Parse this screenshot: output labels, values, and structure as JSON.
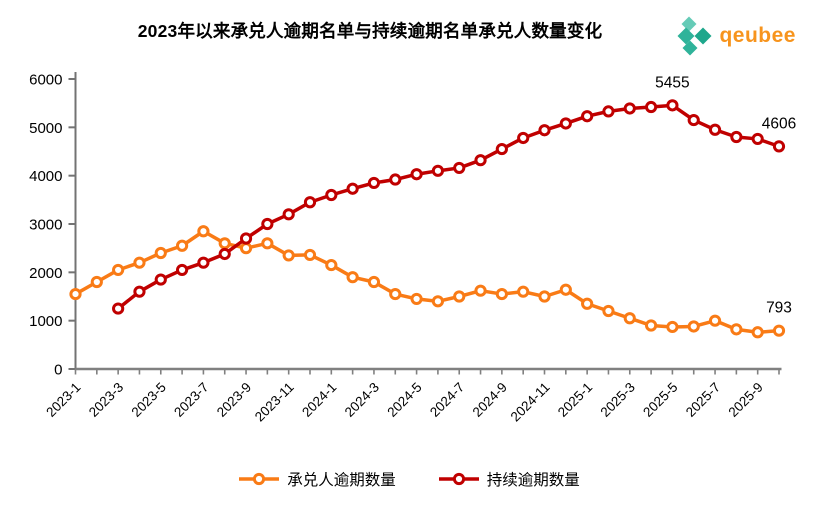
{
  "title": "2023年以来承兑人逾期名单与持续逾期名单承兑人数量变化",
  "logo": {
    "text": "qeubee",
    "colors": {
      "teal_dark": "#1EA78C",
      "teal": "#2FB39A",
      "teal_light": "#65CBB7",
      "orange": "#F7941D"
    }
  },
  "chart_data": {
    "type": "line",
    "title": "2023年以来承兑人逾期名单与持续逾期名单承兑人数量变化",
    "x": [
      "2023-1",
      "2023-2",
      "2023-3",
      "2023-4",
      "2023-5",
      "2023-6",
      "2023-7",
      "2023-8",
      "2023-9",
      "2023-10",
      "2023-11",
      "2023-12",
      "2024-1",
      "2024-2",
      "2024-3",
      "2024-4",
      "2024-5",
      "2024-6",
      "2024-7",
      "2024-8",
      "2024-9",
      "2024-10",
      "2024-11",
      "2024-12",
      "2025-1",
      "2025-2",
      "2025-3",
      "2025-4",
      "2025-5",
      "2025-6",
      "2025-7",
      "2025-8",
      "2025-9",
      "2025-10"
    ],
    "x_label_step": 2,
    "ylim": [
      0,
      6000
    ],
    "y_ticks": [
      0,
      1000,
      2000,
      3000,
      4000,
      5000,
      6000
    ],
    "grid": false,
    "legend_position": "bottom",
    "series": [
      {
        "name": "承兑人逾期数量",
        "color": "#F97B16",
        "values": [
          1550,
          1800,
          2050,
          2200,
          2400,
          2550,
          2850,
          2600,
          2500,
          2600,
          2350,
          2360,
          2150,
          1900,
          1800,
          1550,
          1450,
          1400,
          1500,
          1620,
          1550,
          1600,
          1500,
          1640,
          1350,
          1200,
          1050,
          900,
          870,
          880,
          1000,
          820,
          760,
          793
        ]
      },
      {
        "name": "持续逾期数量",
        "color": "#C00000",
        "values": [
          null,
          null,
          1250,
          1600,
          1850,
          2050,
          2200,
          2380,
          2700,
          3000,
          3200,
          3450,
          3600,
          3730,
          3850,
          3920,
          4030,
          4100,
          4160,
          4320,
          4550,
          4780,
          4940,
          5080,
          5230,
          5330,
          5390,
          5420,
          5455,
          5150,
          4950,
          4800,
          4760,
          4606
        ]
      }
    ],
    "annotations": [
      {
        "series_index": 1,
        "x": "2025-5",
        "label": "5455"
      },
      {
        "series_index": 1,
        "x": "2025-10",
        "label": "4606"
      },
      {
        "series_index": 0,
        "x": "2025-10",
        "label": "793"
      }
    ]
  }
}
